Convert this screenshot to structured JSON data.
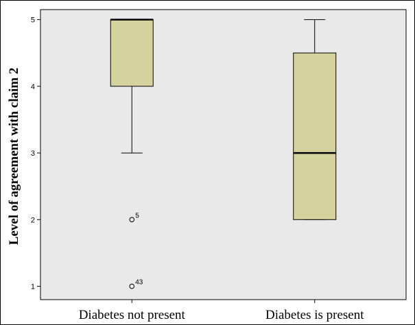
{
  "chart_data": {
    "type": "boxplot",
    "title": "",
    "xlabel": "",
    "ylabel": "Level of agreement with claim 2",
    "categories": [
      "Diabetes not present",
      "Diabetes is present"
    ],
    "ylim": [
      0.8,
      5.15
    ],
    "yticks": [
      1,
      2,
      3,
      4,
      5
    ],
    "grid": false,
    "colors": {
      "box_fill": "#d4d29d",
      "stroke": "#000000",
      "background": "#e9e9e9"
    },
    "boxes": [
      {
        "category": "Diabetes not present",
        "whisker_low": 3,
        "q1": 4,
        "median": 5,
        "q3": 5,
        "whisker_high": 5,
        "outliers": [
          {
            "value": 2,
            "label": "5"
          },
          {
            "value": 1,
            "label": "43"
          }
        ]
      },
      {
        "category": "Diabetes is present",
        "whisker_low": 2,
        "q1": 2,
        "median": 3,
        "q3": 4.5,
        "whisker_high": 5,
        "outliers": []
      }
    ]
  }
}
